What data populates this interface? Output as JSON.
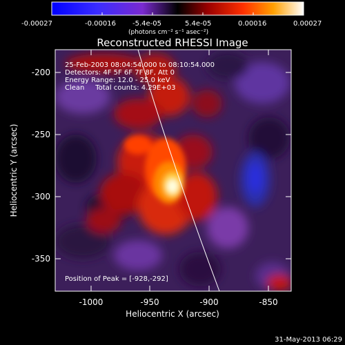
{
  "colorbar": {
    "tick_labels": [
      "-0.00027",
      "-0.00016",
      "-5.4e-05",
      "5.4e-05",
      "0.00016",
      "0.00027"
    ],
    "unit_label": "(photons cm⁻² s⁻¹ asec⁻²)"
  },
  "plot": {
    "title": "Reconstructed RHESSI Image",
    "x_label": "Heliocentric X (arcsec)",
    "y_label": "Heliocentric Y (arcsec)",
    "x_ticks": [
      "-1000",
      "-950",
      "-900",
      "-850"
    ],
    "y_ticks": [
      "-200",
      "-250",
      "-300",
      "-350"
    ],
    "info_lines": [
      "25-Feb-2003 08:04:54.000 to 08:10:54.000",
      "Detectors: 4F 5F 6F 7F 8F, Att 0",
      "Energy Range: 12.0 - 25.0 keV",
      "Clean     Total counts: 4.29E+03"
    ],
    "peak_label": "Position of Peak = [-928,-292]"
  },
  "footer": {
    "timestamp": "31-May-2013 06:29"
  }
}
